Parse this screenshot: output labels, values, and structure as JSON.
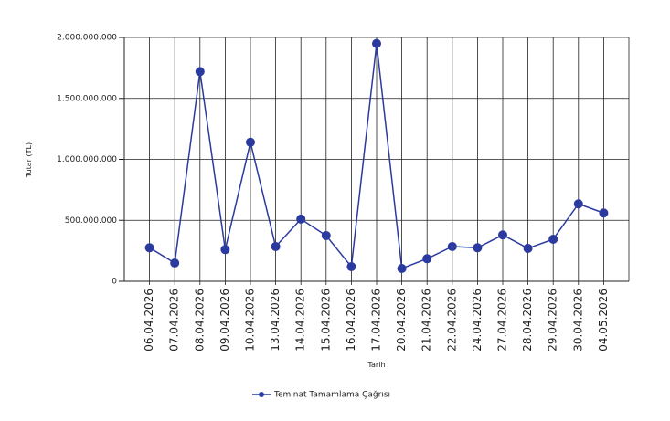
{
  "chart_data": {
    "type": "line",
    "x_label": "Tarih",
    "y_label": "Tutar (TL)",
    "categories": [
      "06.04.2026",
      "07.04.2026",
      "08.04.2026",
      "09.04.2026",
      "10.04.2026",
      "13.04.2026",
      "14.04.2026",
      "15.04.2026",
      "16.04.2026",
      "17.04.2026",
      "20.04.2026",
      "21.04.2026",
      "22.04.2026",
      "24.04.2026",
      "27.04.2026",
      "28.04.2026",
      "29.04.2026",
      "30.04.2026",
      "04.05.2026"
    ],
    "series": [
      {
        "name": "Teminat Tamamlama Çağrısı",
        "color": "#2b3a9e",
        "values": [
          275000000,
          150000000,
          1720000000,
          260000000,
          1140000000,
          285000000,
          510000000,
          375000000,
          120000000,
          1950000000,
          105000000,
          185000000,
          285000000,
          275000000,
          380000000,
          270000000,
          345000000,
          635000000,
          560000000
        ]
      }
    ],
    "ylim": [
      0,
      2000000000
    ],
    "yticks": [
      0,
      {
        "value": 500000000,
        "label": "500.000.000"
      },
      {
        "value": 1000000000,
        "label": "1.000.000.000"
      },
      {
        "value": 1500000000,
        "label": "1.500.000.000"
      },
      {
        "value": 2000000000,
        "label": "2.000.000.000"
      }
    ],
    "grid": true,
    "legend": "bottom"
  }
}
